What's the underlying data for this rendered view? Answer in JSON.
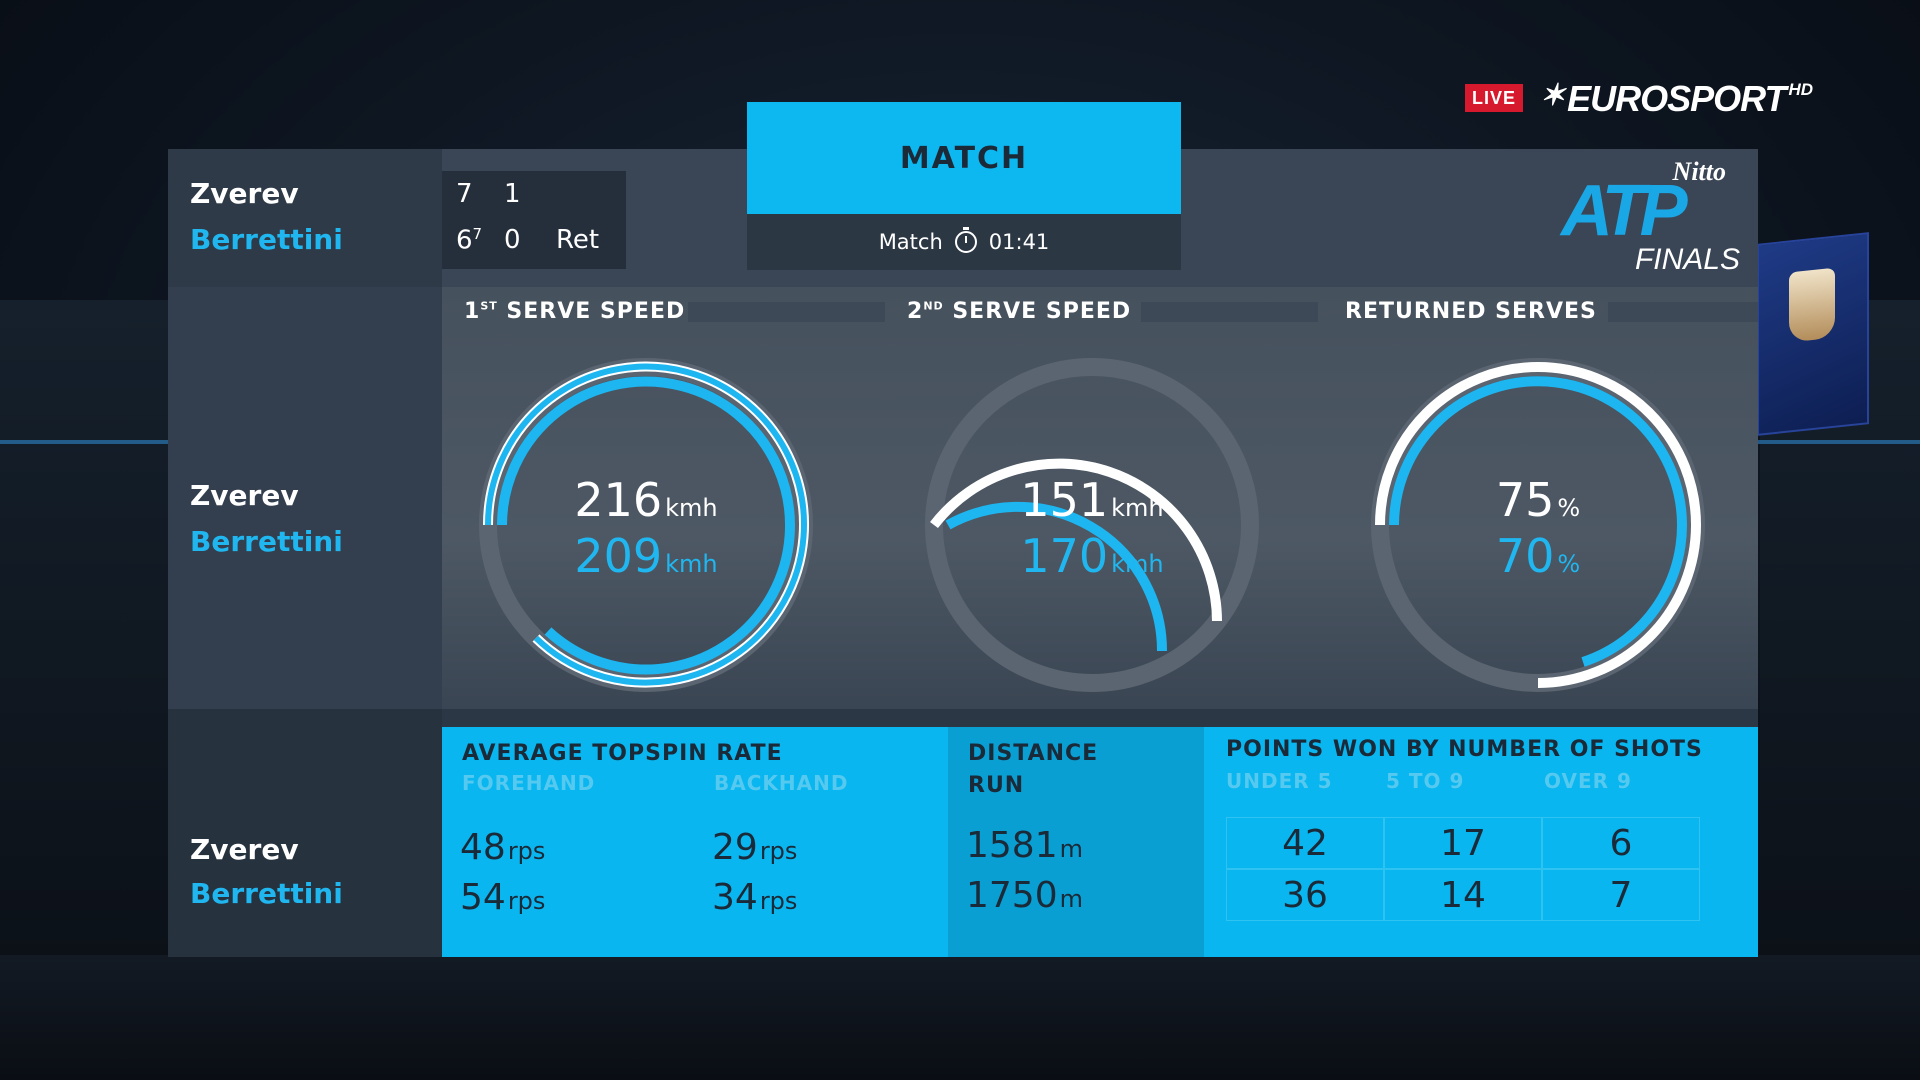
{
  "broadcast": {
    "live_label": "LIVE",
    "network": "EUROSPORT",
    "quality": "HD",
    "event_logo": {
      "sponsor": "Nitto",
      "name": "ATP",
      "sub": "FINALS"
    }
  },
  "scoreboard": {
    "player1": {
      "name": "Zverev",
      "set1": "7",
      "set2": "1"
    },
    "player2": {
      "name": "Berrettini",
      "set1": "6",
      "set1_tiebreak": "7",
      "set2": "0",
      "status": "Ret"
    }
  },
  "header": {
    "tab_label": "MATCH",
    "timer_label": "Match",
    "timer_value": "01:41"
  },
  "players": {
    "p1": "Zverev",
    "p2": "Berrettini"
  },
  "gauges": [
    {
      "title_main": "1",
      "title_sup": "ST",
      "title_rest": "SERVE SPEED",
      "p1_value": "216",
      "p1_unit": "kmh",
      "p2_value": "209",
      "p2_unit": "kmh"
    },
    {
      "title_main": "2",
      "title_sup": "ND",
      "title_rest": "SERVE SPEED",
      "p1_value": "151",
      "p1_unit": "kmh",
      "p2_value": "170",
      "p2_unit": "kmh"
    },
    {
      "title_main": "RETURNED SERVES",
      "title_sup": "",
      "title_rest": "",
      "p1_value": "75",
      "p1_unit": "%",
      "p2_value": "70",
      "p2_unit": "%"
    }
  ],
  "topspin": {
    "title": "AVERAGE TOPSPIN RATE",
    "forehand_label": "FOREHAND",
    "backhand_label": "BACKHAND",
    "p1_forehand": "48",
    "p1_backhand": "29",
    "p2_forehand": "54",
    "p2_backhand": "34",
    "unit": "rps"
  },
  "distance": {
    "title_line1": "DISTANCE",
    "title_line2": "RUN",
    "p1": "1581",
    "p2": "1750",
    "unit": "m"
  },
  "points_by_shots": {
    "title": "POINTS WON BY NUMBER OF SHOTS",
    "columns": [
      "UNDER 5",
      "5 TO 9",
      "OVER 9"
    ],
    "p1": [
      "42",
      "17",
      "6"
    ],
    "p2": [
      "36",
      "14",
      "7"
    ]
  },
  "colors": {
    "accent_blue": "#0db7f0",
    "player2_blue": "#20b7f0",
    "dark_navy": "#1b2a38",
    "live_red": "#d7192d"
  }
}
